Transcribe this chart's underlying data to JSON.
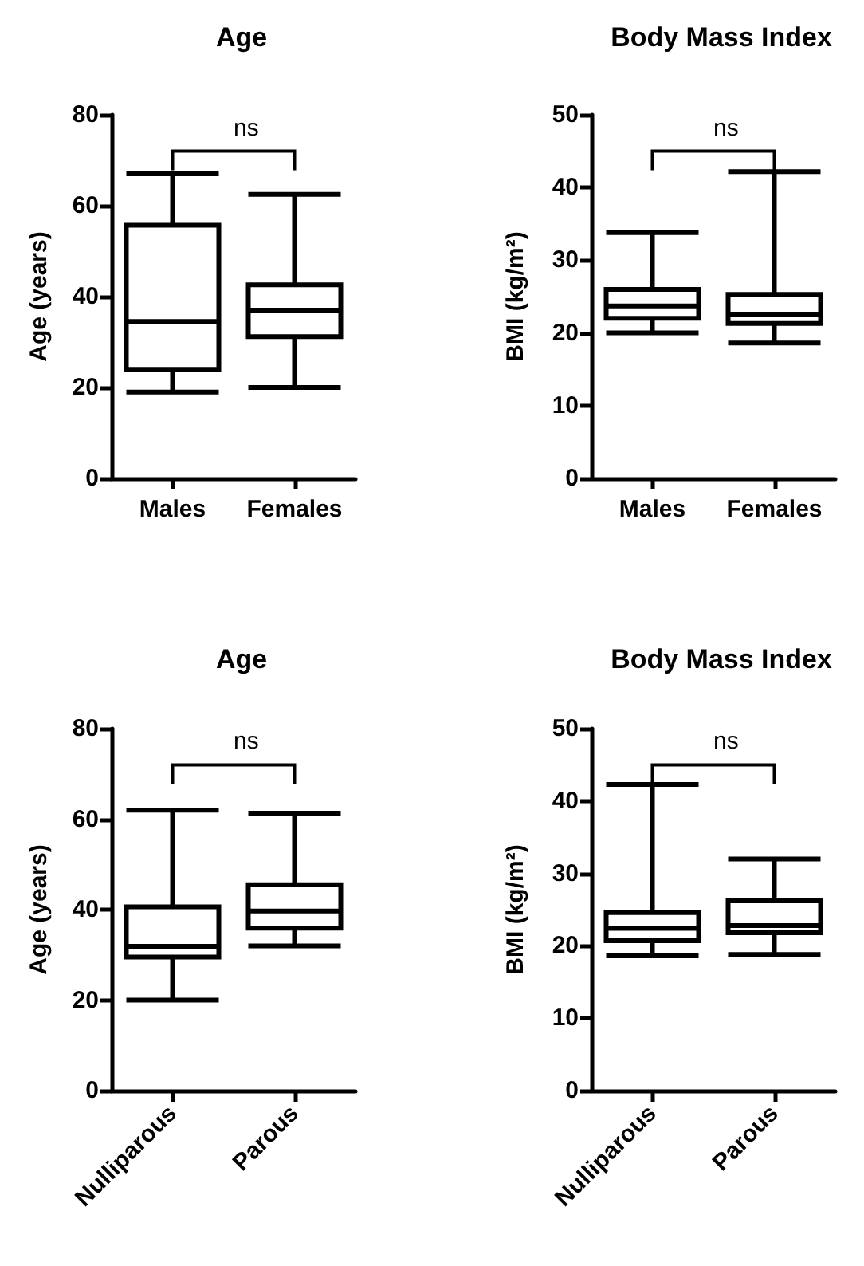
{
  "chart_data": [
    {
      "type": "box",
      "title": "Age",
      "ylabel": "Age (years)",
      "categories": [
        "Males",
        "Females"
      ],
      "ylim": [
        0,
        80
      ],
      "yticks": [
        0,
        20,
        40,
        60,
        80
      ],
      "annotations": [
        "ns"
      ],
      "boxes": [
        {
          "low": 19,
          "q1": 24,
          "median": 34.5,
          "q3": 55.7,
          "high": 67
        },
        {
          "low": 20,
          "q1": 31.2,
          "median": 37,
          "q3": 42.6,
          "high": 62.5
        }
      ]
    },
    {
      "type": "box",
      "title": "Body Mass Index",
      "ylabel": "BMI (kg/m²)",
      "categories": [
        "Males",
        "Females"
      ],
      "ylim": [
        0,
        50
      ],
      "yticks": [
        0,
        10,
        20,
        30,
        40,
        50
      ],
      "annotations": [
        "ns"
      ],
      "boxes": [
        {
          "low": 20,
          "q1": 22,
          "median": 23.7,
          "q3": 26,
          "high": 33.8
        },
        {
          "low": 18.6,
          "q1": 21.3,
          "median": 22.6,
          "q3": 25.3,
          "high": 42.2
        }
      ]
    },
    {
      "type": "box",
      "title": "Age",
      "ylabel": "Age (years)",
      "categories": [
        "Nulliparous",
        "Parous"
      ],
      "ylim": [
        0,
        80
      ],
      "yticks": [
        0,
        20,
        40,
        60,
        80
      ],
      "annotations": [
        "ns"
      ],
      "boxes": [
        {
          "low": 20,
          "q1": 29.5,
          "median": 31.9,
          "q3": 40.6,
          "high": 62
        },
        {
          "low": 32,
          "q1": 35.9,
          "median": 39.7,
          "q3": 45.5,
          "high": 61.3
        }
      ]
    },
    {
      "type": "box",
      "title": "Body Mass Index",
      "ylabel": "BMI (kg/m²)",
      "categories": [
        "Nulliparous",
        "Parous"
      ],
      "ylim": [
        0,
        50
      ],
      "yticks": [
        0,
        10,
        20,
        30,
        40,
        50
      ],
      "annotations": [
        "ns"
      ],
      "boxes": [
        {
          "low": 18.6,
          "q1": 20.7,
          "median": 22.4,
          "q3": 24.6,
          "high": 42.3
        },
        {
          "low": 18.8,
          "q1": 21.8,
          "median": 22.8,
          "q3": 26.2,
          "high": 32
        }
      ]
    }
  ]
}
